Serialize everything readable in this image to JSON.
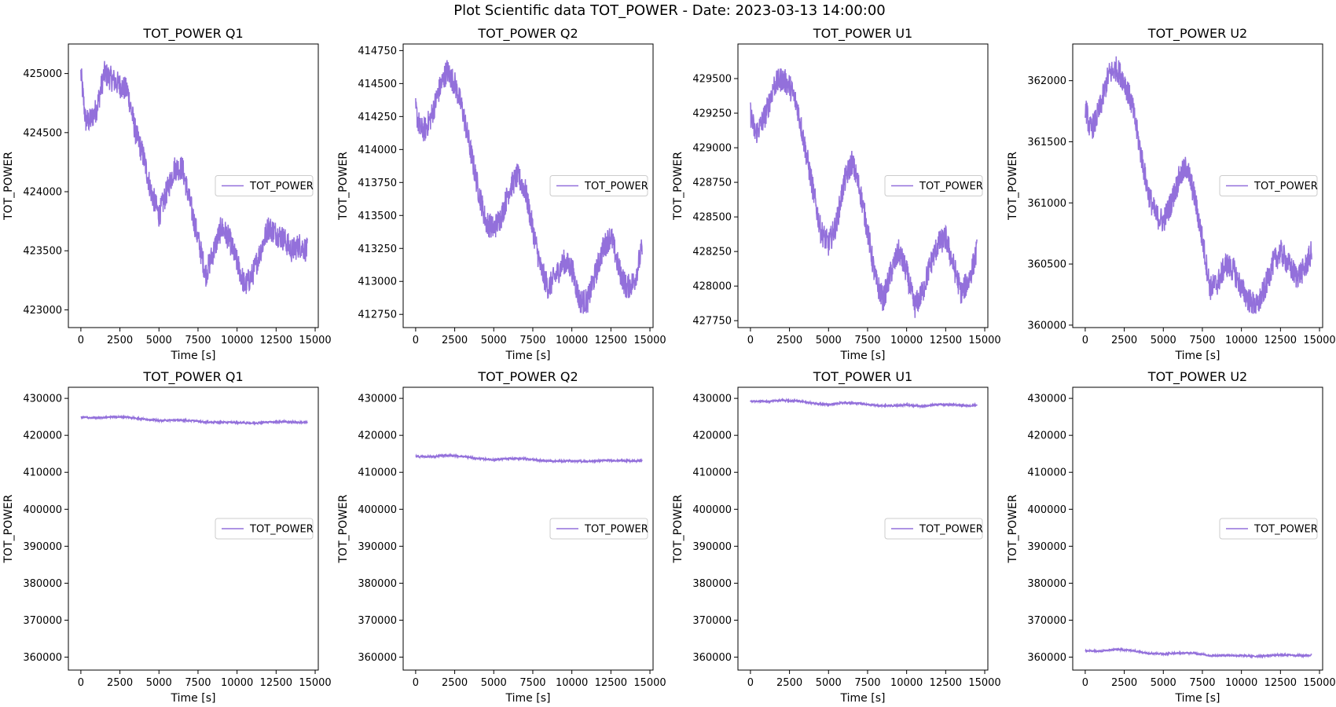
{
  "figure": {
    "title": "Plot Scientific data TOT_POWER - Date: 2023-03-13 14:00:00",
    "line_color": "#9370DB"
  },
  "chart_data": [
    {
      "type": "line",
      "title": "TOT_POWER Q1",
      "xlabel": "Time [s]",
      "ylabel": "TOT_POWER",
      "xlim": [
        -800,
        15200
      ],
      "ylim": [
        422850,
        425250
      ],
      "xticks": [
        0,
        2500,
        5000,
        7500,
        10000,
        12500,
        15000
      ],
      "yticks": [
        423000,
        423500,
        424000,
        424500,
        425000
      ],
      "legend": {
        "entries": [
          "TOT_POWER"
        ],
        "placement": "center-right"
      },
      "series": [
        {
          "name": "TOT_POWER",
          "x": [
            0,
            300,
            600,
            1000,
            1500,
            2000,
            2500,
            3000,
            3500,
            4000,
            4500,
            5000,
            5500,
            6000,
            6500,
            7000,
            7500,
            8000,
            8500,
            9000,
            9500,
            10000,
            10500,
            11000,
            11500,
            12000,
            12500,
            13000,
            13500,
            14000,
            14500
          ],
          "y": [
            425000,
            424600,
            424600,
            424700,
            425000,
            424950,
            424900,
            424850,
            424500,
            424300,
            424000,
            423800,
            424000,
            424200,
            424200,
            423900,
            423600,
            423300,
            423500,
            423700,
            423600,
            423400,
            423200,
            423300,
            423500,
            423700,
            423650,
            423600,
            423500,
            423550,
            423500
          ]
        }
      ]
    },
    {
      "type": "line",
      "title": "TOT_POWER Q2",
      "xlabel": "Time [s]",
      "ylabel": "TOT_POWER",
      "xlim": [
        -800,
        15200
      ],
      "ylim": [
        412650,
        414800
      ],
      "xticks": [
        0,
        2500,
        5000,
        7500,
        10000,
        12500,
        15000
      ],
      "yticks": [
        412750,
        413000,
        413250,
        413500,
        413750,
        414000,
        414250,
        414500,
        414750
      ],
      "legend": {
        "entries": [
          "TOT_POWER"
        ],
        "placement": "center-right"
      },
      "series": [
        {
          "name": "TOT_POWER",
          "x": [
            0,
            300,
            600,
            1000,
            1500,
            2000,
            2500,
            3000,
            3500,
            4000,
            4500,
            5000,
            5500,
            6000,
            6500,
            7000,
            7500,
            8000,
            8500,
            9000,
            9500,
            10000,
            10500,
            11000,
            11500,
            12000,
            12500,
            13000,
            13500,
            14000,
            14500
          ],
          "y": [
            414300,
            414150,
            414150,
            414250,
            414450,
            414600,
            414500,
            414300,
            414000,
            413700,
            413450,
            413400,
            413500,
            413700,
            413800,
            413700,
            413400,
            413100,
            412950,
            413050,
            413150,
            413100,
            412850,
            412850,
            413050,
            413250,
            413350,
            413100,
            412950,
            413000,
            413250
          ]
        }
      ]
    },
    {
      "type": "line",
      "title": "TOT_POWER U1",
      "xlabel": "Time [s]",
      "ylabel": "TOT_POWER",
      "xlim": [
        -800,
        15200
      ],
      "ylim": [
        427700,
        429750
      ],
      "xticks": [
        0,
        2500,
        5000,
        7500,
        10000,
        12500,
        15000
      ],
      "yticks": [
        427750,
        428000,
        428250,
        428500,
        428750,
        429000,
        429250,
        429500
      ],
      "legend": {
        "entries": [
          "TOT_POWER"
        ],
        "placement": "center-right"
      },
      "series": [
        {
          "name": "TOT_POWER",
          "x": [
            0,
            300,
            600,
            1000,
            1500,
            2000,
            2500,
            3000,
            3500,
            4000,
            4500,
            5000,
            5500,
            6000,
            6500,
            7000,
            7500,
            8000,
            8500,
            9000,
            9500,
            10000,
            10500,
            11000,
            11500,
            12000,
            12500,
            13000,
            13500,
            14000,
            14500
          ],
          "y": [
            429250,
            429100,
            429150,
            429250,
            429450,
            429500,
            429450,
            429300,
            429000,
            428700,
            428400,
            428300,
            428450,
            428750,
            428900,
            428700,
            428400,
            428050,
            427900,
            428100,
            428250,
            428100,
            427850,
            427950,
            428150,
            428300,
            428350,
            428150,
            427950,
            428050,
            428250
          ]
        }
      ]
    },
    {
      "type": "line",
      "title": "TOT_POWER U2",
      "xlabel": "Time [s]",
      "ylabel": "TOT_POWER",
      "xlim": [
        -800,
        15200
      ],
      "ylim": [
        359980,
        362300
      ],
      "xticks": [
        0,
        2500,
        5000,
        7500,
        10000,
        12500,
        15000
      ],
      "yticks": [
        360000,
        360500,
        361000,
        361500,
        362000
      ],
      "legend": {
        "entries": [
          "TOT_POWER"
        ],
        "placement": "center-right"
      },
      "series": [
        {
          "name": "TOT_POWER",
          "x": [
            0,
            300,
            600,
            1000,
            1500,
            2000,
            2500,
            3000,
            3500,
            4000,
            4500,
            5000,
            5500,
            6000,
            6500,
            7000,
            7500,
            8000,
            8500,
            9000,
            9500,
            10000,
            10500,
            11000,
            11500,
            12000,
            12500,
            13000,
            13500,
            14000,
            14500
          ],
          "y": [
            361800,
            361600,
            361650,
            361800,
            362050,
            362100,
            362000,
            361800,
            361450,
            361100,
            360900,
            360850,
            361000,
            361200,
            361300,
            361050,
            360700,
            360300,
            360350,
            360500,
            360450,
            360300,
            360200,
            360150,
            360300,
            360500,
            360600,
            360500,
            360400,
            360450,
            360600
          ]
        }
      ]
    },
    {
      "type": "line",
      "title": "TOT_POWER Q1",
      "xlabel": "Time [s]",
      "ylabel": "TOT_POWER",
      "xlim": [
        -800,
        15200
      ],
      "ylim": [
        356500,
        433000
      ],
      "xticks": [
        0,
        2500,
        5000,
        7500,
        10000,
        12500,
        15000
      ],
      "yticks": [
        360000,
        370000,
        380000,
        390000,
        400000,
        410000,
        420000,
        430000
      ],
      "legend": {
        "entries": [
          "TOT_POWER"
        ],
        "placement": "center-right"
      },
      "series": [
        {
          "name": "TOT_POWER",
          "x": [
            0,
            1000,
            2000,
            3000,
            4000,
            5000,
            6000,
            7000,
            8000,
            9000,
            10000,
            11000,
            12000,
            13000,
            14000,
            14500
          ],
          "y": [
            424900,
            424700,
            425000,
            424900,
            424400,
            424000,
            424100,
            424000,
            423600,
            423500,
            423500,
            423300,
            423600,
            423700,
            423500,
            423500
          ]
        }
      ]
    },
    {
      "type": "line",
      "title": "TOT_POWER Q2",
      "xlabel": "Time [s]",
      "ylabel": "TOT_POWER",
      "xlim": [
        -800,
        15200
      ],
      "ylim": [
        356500,
        433000
      ],
      "xticks": [
        0,
        2500,
        5000,
        7500,
        10000,
        12500,
        15000
      ],
      "yticks": [
        360000,
        370000,
        380000,
        390000,
        400000,
        410000,
        420000,
        430000
      ],
      "legend": {
        "entries": [
          "TOT_POWER"
        ],
        "placement": "center-right"
      },
      "series": [
        {
          "name": "TOT_POWER",
          "x": [
            0,
            1000,
            2000,
            3000,
            4000,
            5000,
            6000,
            7000,
            8000,
            9000,
            10000,
            11000,
            12000,
            13000,
            14000,
            14500
          ],
          "y": [
            414300,
            414200,
            414600,
            414300,
            413700,
            413400,
            413700,
            413700,
            413200,
            413000,
            413100,
            412900,
            413200,
            413200,
            413000,
            413250
          ]
        }
      ]
    },
    {
      "type": "line",
      "title": "TOT_POWER U1",
      "xlabel": "Time [s]",
      "ylabel": "TOT_POWER",
      "xlim": [
        -800,
        15200
      ],
      "ylim": [
        356500,
        433000
      ],
      "xticks": [
        0,
        2500,
        5000,
        7500,
        10000,
        12500,
        15000
      ],
      "yticks": [
        360000,
        370000,
        380000,
        390000,
        400000,
        410000,
        420000,
        430000
      ],
      "legend": {
        "entries": [
          "TOT_POWER"
        ],
        "placement": "center-right"
      },
      "series": [
        {
          "name": "TOT_POWER",
          "x": [
            0,
            1000,
            2000,
            3000,
            4000,
            5000,
            6000,
            7000,
            8000,
            9000,
            10000,
            11000,
            12000,
            13000,
            14000,
            14500
          ],
          "y": [
            429200,
            429200,
            429500,
            429300,
            428700,
            428300,
            428800,
            428600,
            428100,
            428000,
            428200,
            427900,
            428300,
            428300,
            428000,
            428250
          ]
        }
      ]
    },
    {
      "type": "line",
      "title": "TOT_POWER U2",
      "xlabel": "Time [s]",
      "ylabel": "TOT_POWER",
      "xlim": [
        -800,
        15200
      ],
      "ylim": [
        356500,
        433000
      ],
      "xticks": [
        0,
        2500,
        5000,
        7500,
        10000,
        12500,
        15000
      ],
      "yticks": [
        360000,
        370000,
        380000,
        390000,
        400000,
        410000,
        420000,
        430000
      ],
      "legend": {
        "entries": [
          "TOT_POWER"
        ],
        "placement": "center-right"
      },
      "series": [
        {
          "name": "TOT_POWER",
          "x": [
            0,
            1000,
            2000,
            3000,
            4000,
            5000,
            6000,
            7000,
            8000,
            9000,
            10000,
            11000,
            12000,
            13000,
            14000,
            14500
          ],
          "y": [
            361700,
            361600,
            362100,
            361800,
            361100,
            360900,
            361100,
            361100,
            360400,
            360500,
            360400,
            360200,
            360500,
            360600,
            360400,
            360600
          ]
        }
      ]
    }
  ]
}
